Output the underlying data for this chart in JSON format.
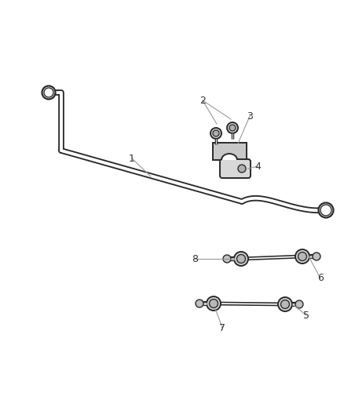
{
  "bg_color": "#ffffff",
  "line_color": "#2a2a2a",
  "label_color": "#333333",
  "leader_color": "#999999",
  "lw_outer": 5.5,
  "lw_inner": 2.8,
  "label_fontsize": 9
}
